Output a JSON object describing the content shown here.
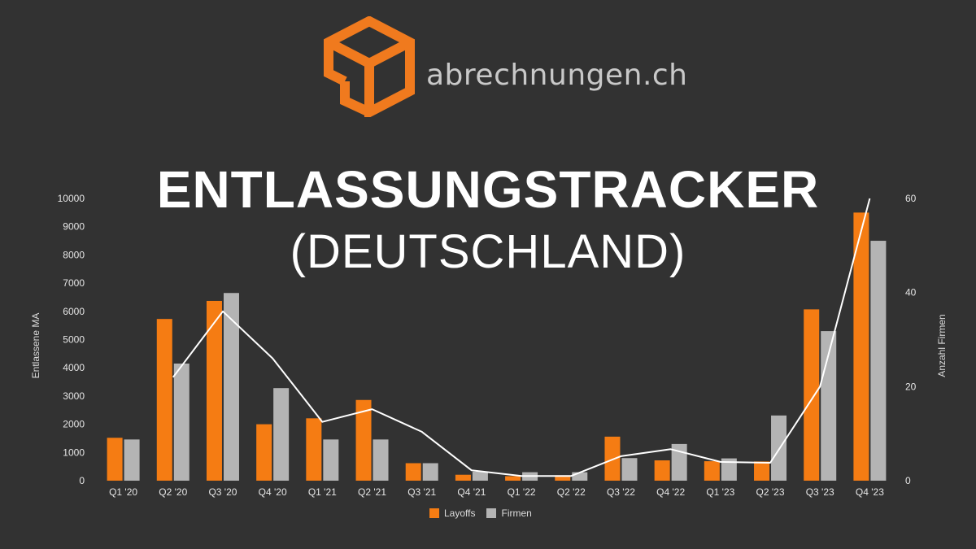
{
  "brand": {
    "name": "abrechnungen.ch",
    "logo_icon": "cube-logo-icon",
    "logo_color": "#f07a1e"
  },
  "header": {
    "title": "ENTLASSUNGSTRACKER",
    "subtitle": "(DEUTSCHLAND)"
  },
  "chart_data": {
    "type": "bar",
    "categories": [
      "Q1 '20",
      "Q2 '20",
      "Q3 '20",
      "Q4 '20",
      "Q1 '21",
      "Q2 '21",
      "Q3 '21",
      "Q4 '21",
      "Q1 '22",
      "Q2 '22",
      "Q3 '22",
      "Q4 '22",
      "Q1 '23",
      "Q2 '23",
      "Q3 '23",
      "Q4 '23"
    ],
    "series": [
      {
        "name": "Layoffs",
        "type": "bar",
        "axis": "left",
        "color": "#f57c13",
        "values": [
          1520,
          5730,
          6370,
          2000,
          2210,
          2860,
          620,
          210,
          160,
          190,
          1560,
          720,
          690,
          680,
          6070,
          9500
        ]
      },
      {
        "name": "Firmen",
        "type": "bar",
        "axis": "left",
        "color": "#b4b4b4",
        "values": [
          1460,
          4150,
          6650,
          3280,
          1460,
          1460,
          620,
          320,
          300,
          300,
          800,
          1300,
          790,
          2310,
          5300,
          8500
        ]
      },
      {
        "name": "",
        "type": "line",
        "axis": "right",
        "color": "#ffffff",
        "values": [
          null,
          22,
          36,
          26,
          12.5,
          15.2,
          10.4,
          2.2,
          1.0,
          1.0,
          5.2,
          6.7,
          4.0,
          3.8,
          20,
          60
        ]
      }
    ],
    "ylabel": "Entlassene MA",
    "ylabel_right": "Anzahl Firmen",
    "ylim": [
      0,
      10000
    ],
    "yticks": [
      0,
      1000,
      2000,
      3000,
      4000,
      5000,
      6000,
      7000,
      8000,
      9000,
      10000
    ],
    "ylim_right": [
      0,
      60
    ],
    "yticks_right": [
      0,
      20,
      40,
      60
    ],
    "grid": false,
    "legend_position": "bottom-center"
  }
}
